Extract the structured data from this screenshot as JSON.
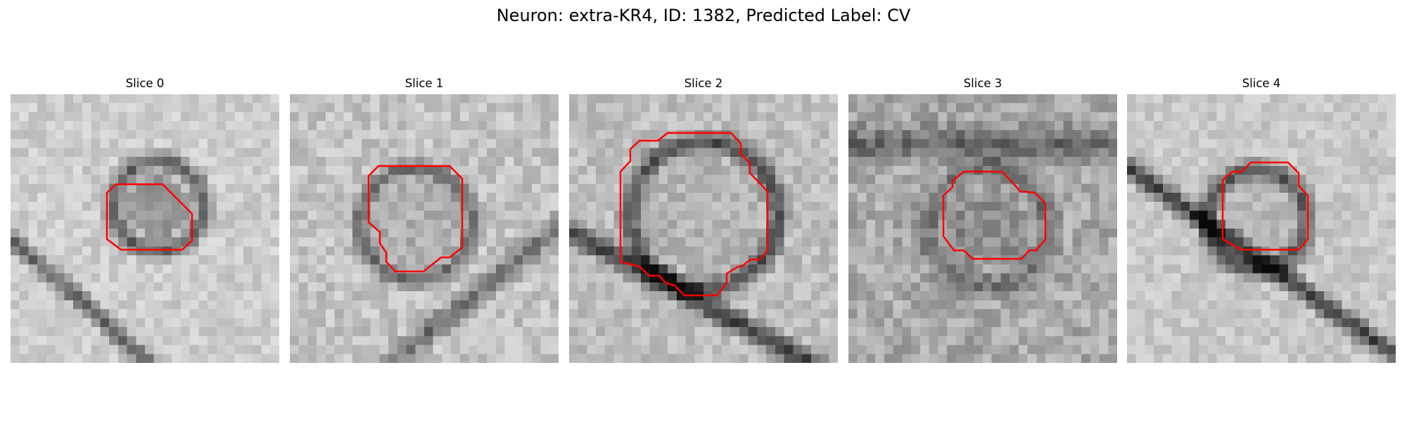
{
  "figure": {
    "title": "Neuron: extra-KR4, ID: 1382, Predicted Label: CV",
    "slices": [
      {
        "title": "Slice 0",
        "contour_color": "#ff0000"
      },
      {
        "title": "Slice 1",
        "contour_color": "#ff0000"
      },
      {
        "title": "Slice 2",
        "contour_color": "#ff0000"
      },
      {
        "title": "Slice 3",
        "contour_color": "#ff0000"
      },
      {
        "title": "Slice 4",
        "contour_color": "#ff0000"
      }
    ],
    "colormap": "gray"
  }
}
